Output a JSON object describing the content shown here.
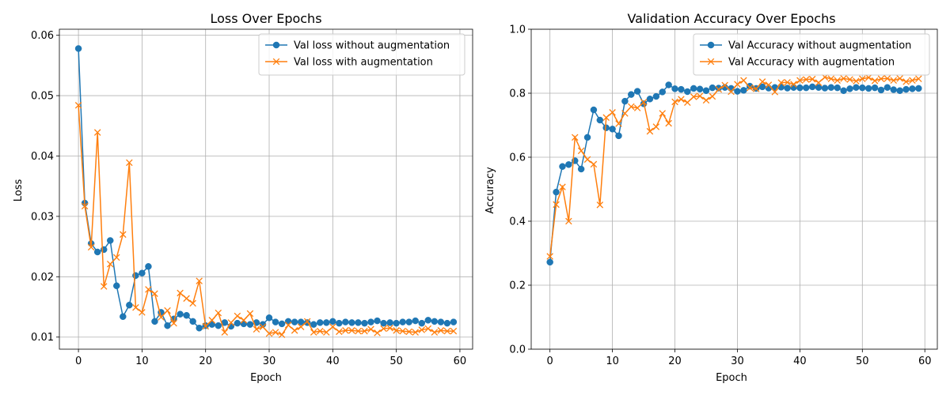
{
  "colors": {
    "blue": "#1f77b4",
    "orange": "#ff7f0e"
  },
  "chart_data": [
    {
      "type": "line",
      "title": "Loss Over Epochs",
      "xlabel": "Epoch",
      "ylabel": "Loss",
      "xlim": [
        -3,
        62
      ],
      "ylim": [
        0.008,
        0.061
      ],
      "xticks": [
        0,
        10,
        20,
        30,
        40,
        50,
        60
      ],
      "yticks": [
        0.01,
        0.02,
        0.03,
        0.04,
        0.05,
        0.06
      ],
      "ytick_labels": [
        "0.01",
        "0.02",
        "0.03",
        "0.04",
        "0.05",
        "0.06"
      ],
      "grid": true,
      "legend_position": "top-right",
      "x": [
        0,
        1,
        2,
        3,
        4,
        5,
        6,
        7,
        8,
        9,
        10,
        11,
        12,
        13,
        14,
        15,
        16,
        17,
        18,
        19,
        20,
        21,
        22,
        23,
        24,
        25,
        26,
        27,
        28,
        29,
        30,
        31,
        32,
        33,
        34,
        35,
        36,
        37,
        38,
        39,
        40,
        41,
        42,
        43,
        44,
        45,
        46,
        47,
        48,
        49,
        50,
        51,
        52,
        53,
        54,
        55,
        56,
        57,
        58,
        59
      ],
      "series": [
        {
          "name": "Val loss without augmentation",
          "marker": "circle",
          "color": "#1f77b4",
          "values": [
            0.0578,
            0.0322,
            0.0255,
            0.0241,
            0.0245,
            0.026,
            0.0185,
            0.0134,
            0.0153,
            0.0202,
            0.0206,
            0.0217,
            0.0126,
            0.0141,
            0.0119,
            0.013,
            0.0138,
            0.0136,
            0.0126,
            0.0115,
            0.0119,
            0.0121,
            0.0119,
            0.0124,
            0.0118,
            0.0123,
            0.0122,
            0.0121,
            0.0124,
            0.0121,
            0.0132,
            0.0125,
            0.0122,
            0.0126,
            0.0125,
            0.0125,
            0.0124,
            0.0121,
            0.0124,
            0.0124,
            0.0126,
            0.0123,
            0.0125,
            0.0124,
            0.0124,
            0.0123,
            0.0125,
            0.0127,
            0.0123,
            0.0124,
            0.0123,
            0.0125,
            0.0125,
            0.0127,
            0.0123,
            0.0128,
            0.0126,
            0.0125,
            0.0123,
            0.0125
          ]
        },
        {
          "name": "Val loss with augmentation",
          "marker": "x",
          "color": "#ff7f0e",
          "values": [
            0.0484,
            0.0317,
            0.0249,
            0.0439,
            0.0184,
            0.0221,
            0.0232,
            0.027,
            0.0389,
            0.0149,
            0.0141,
            0.0179,
            0.0172,
            0.0133,
            0.0144,
            0.0123,
            0.0173,
            0.0164,
            0.0156,
            0.0193,
            0.0118,
            0.0128,
            0.014,
            0.0108,
            0.0124,
            0.0135,
            0.0128,
            0.0139,
            0.0113,
            0.0117,
            0.0106,
            0.0108,
            0.0104,
            0.012,
            0.0111,
            0.0117,
            0.0126,
            0.0108,
            0.011,
            0.0108,
            0.0117,
            0.0109,
            0.0111,
            0.0111,
            0.011,
            0.011,
            0.0113,
            0.0107,
            0.0114,
            0.0115,
            0.0111,
            0.011,
            0.0109,
            0.0108,
            0.0112,
            0.0114,
            0.0108,
            0.0111,
            0.011,
            0.011
          ]
        }
      ]
    },
    {
      "type": "line",
      "title": "Validation Accuracy Over Epochs",
      "xlabel": "Epoch",
      "ylabel": "Accuracy",
      "xlim": [
        -3,
        62
      ],
      "ylim": [
        0.0,
        1.0
      ],
      "xticks": [
        0,
        10,
        20,
        30,
        40,
        50,
        60
      ],
      "yticks": [
        0.0,
        0.2,
        0.4,
        0.6,
        0.8,
        1.0
      ],
      "ytick_labels": [
        "0.0",
        "0.2",
        "0.4",
        "0.6",
        "0.8",
        "1.0"
      ],
      "grid": true,
      "legend_position": "top-right",
      "x": [
        0,
        1,
        2,
        3,
        4,
        5,
        6,
        7,
        8,
        9,
        10,
        11,
        12,
        13,
        14,
        15,
        16,
        17,
        18,
        19,
        20,
        21,
        22,
        23,
        24,
        25,
        26,
        27,
        28,
        29,
        30,
        31,
        32,
        33,
        34,
        35,
        36,
        37,
        38,
        39,
        40,
        41,
        42,
        43,
        44,
        45,
        46,
        47,
        48,
        49,
        50,
        51,
        52,
        53,
        54,
        55,
        56,
        57,
        58,
        59
      ],
      "series": [
        {
          "name": "Val Accuracy without augmentation",
          "marker": "circle",
          "color": "#1f77b4",
          "values": [
            0.272,
            0.491,
            0.571,
            0.577,
            0.589,
            0.563,
            0.662,
            0.748,
            0.716,
            0.692,
            0.688,
            0.667,
            0.775,
            0.796,
            0.806,
            0.767,
            0.782,
            0.79,
            0.804,
            0.826,
            0.814,
            0.812,
            0.805,
            0.815,
            0.813,
            0.808,
            0.817,
            0.816,
            0.818,
            0.815,
            0.806,
            0.809,
            0.822,
            0.815,
            0.82,
            0.816,
            0.818,
            0.819,
            0.816,
            0.818,
            0.817,
            0.817,
            0.82,
            0.818,
            0.816,
            0.818,
            0.817,
            0.808,
            0.814,
            0.818,
            0.817,
            0.815,
            0.817,
            0.81,
            0.818,
            0.811,
            0.808,
            0.812,
            0.814,
            0.815
          ]
        },
        {
          "name": "Val Accuracy with augmentation",
          "marker": "x",
          "color": "#ff7f0e",
          "values": [
            0.29,
            0.452,
            0.507,
            0.4,
            0.662,
            0.62,
            0.593,
            0.578,
            0.451,
            0.724,
            0.74,
            0.705,
            0.737,
            0.758,
            0.754,
            0.772,
            0.681,
            0.695,
            0.737,
            0.706,
            0.773,
            0.781,
            0.771,
            0.789,
            0.791,
            0.778,
            0.79,
            0.812,
            0.825,
            0.805,
            0.828,
            0.84,
            0.817,
            0.814,
            0.836,
            0.826,
            0.804,
            0.833,
            0.834,
            0.828,
            0.84,
            0.843,
            0.844,
            0.833,
            0.85,
            0.845,
            0.84,
            0.846,
            0.843,
            0.838,
            0.845,
            0.849,
            0.839,
            0.845,
            0.846,
            0.84,
            0.846,
            0.836,
            0.84,
            0.845
          ]
        }
      ]
    }
  ]
}
